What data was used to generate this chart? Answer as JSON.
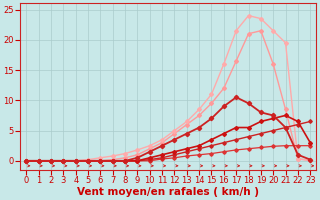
{
  "title": "",
  "xlabel": "Vent moyen/en rafales ( km/h )",
  "x_ticks": [
    0,
    1,
    2,
    3,
    4,
    5,
    6,
    7,
    8,
    9,
    10,
    11,
    12,
    13,
    14,
    15,
    16,
    17,
    18,
    19,
    20,
    21,
    22,
    23
  ],
  "y_ticks": [
    0,
    5,
    10,
    15,
    20,
    25
  ],
  "ylim": [
    -1.5,
    26
  ],
  "xlim": [
    -0.5,
    23.5
  ],
  "background_color": "#c8e8e8",
  "grid_color": "#aacccc",
  "series": [
    {
      "x": [
        0,
        1,
        2,
        3,
        4,
        5,
        6,
        7,
        8,
        9,
        10,
        11,
        12,
        13,
        14,
        15,
        16,
        17,
        18,
        19,
        20,
        21,
        22,
        23
      ],
      "y": [
        0,
        0,
        0,
        0,
        0,
        0,
        0,
        0,
        0,
        0,
        0,
        0.3,
        0.5,
        0.8,
        1.0,
        1.2,
        1.5,
        1.8,
        2.0,
        2.2,
        2.4,
        2.5,
        2.5,
        2.5
      ],
      "color": "#dd3333",
      "lw": 0.9,
      "marker": "D",
      "ms": 1.8,
      "zorder": 3
    },
    {
      "x": [
        0,
        1,
        2,
        3,
        4,
        5,
        6,
        7,
        8,
        9,
        10,
        11,
        12,
        13,
        14,
        15,
        16,
        17,
        18,
        19,
        20,
        21,
        22,
        23
      ],
      "y": [
        0,
        0,
        0,
        0,
        0,
        0,
        0,
        0,
        0,
        0,
        0.2,
        0.5,
        1.0,
        1.5,
        2.0,
        2.5,
        3.0,
        3.5,
        4.0,
        4.5,
        5.0,
        5.5,
        6.0,
        6.5
      ],
      "color": "#cc2222",
      "lw": 1.0,
      "marker": "D",
      "ms": 1.8,
      "zorder": 3
    },
    {
      "x": [
        0,
        1,
        2,
        3,
        4,
        5,
        6,
        7,
        8,
        9,
        10,
        11,
        12,
        13,
        14,
        15,
        16,
        17,
        18,
        19,
        20,
        21,
        22,
        23
      ],
      "y": [
        0,
        0,
        0,
        0,
        0,
        0,
        0,
        0,
        0,
        0,
        0.5,
        1.0,
        1.5,
        2.0,
        2.5,
        3.5,
        4.5,
        5.5,
        5.5,
        6.5,
        7.0,
        7.5,
        6.5,
        3.0
      ],
      "color": "#cc1111",
      "lw": 1.2,
      "marker": "D",
      "ms": 2.0,
      "zorder": 4
    },
    {
      "x": [
        0,
        1,
        2,
        3,
        4,
        5,
        6,
        7,
        8,
        9,
        10,
        11,
        12,
        13,
        14,
        15,
        16,
        17,
        18,
        19,
        20,
        21,
        22,
        23
      ],
      "y": [
        0,
        0,
        0,
        0,
        0,
        0,
        0,
        0,
        0,
        0.5,
        1.5,
        2.5,
        3.5,
        4.5,
        5.5,
        7.0,
        9.0,
        10.5,
        9.5,
        8.0,
        7.5,
        5.5,
        1.0,
        0.2
      ],
      "color": "#cc2222",
      "lw": 1.3,
      "marker": "D",
      "ms": 2.2,
      "zorder": 4
    },
    {
      "x": [
        0,
        1,
        2,
        3,
        4,
        5,
        6,
        7,
        8,
        9,
        10,
        11,
        12,
        13,
        14,
        15,
        16,
        17,
        18,
        19,
        20,
        21,
        22,
        23
      ],
      "y": [
        0,
        0,
        0,
        0,
        0,
        0,
        0,
        0.2,
        0.5,
        1.0,
        2.0,
        3.0,
        4.5,
        6.0,
        7.5,
        9.5,
        12.0,
        16.5,
        21.0,
        21.5,
        16.0,
        8.5,
        0.3,
        0.1
      ],
      "color": "#ff9999",
      "lw": 1.0,
      "marker": "D",
      "ms": 2.0,
      "zorder": 2
    },
    {
      "x": [
        0,
        1,
        2,
        3,
        4,
        5,
        6,
        7,
        8,
        9,
        10,
        11,
        12,
        13,
        14,
        15,
        16,
        17,
        18,
        19,
        20,
        21,
        22,
        23
      ],
      "y": [
        0,
        0,
        0,
        0,
        0,
        0.2,
        0.5,
        0.8,
        1.2,
        1.8,
        2.5,
        3.5,
        5.0,
        6.5,
        8.5,
        11.0,
        16.0,
        21.5,
        24.0,
        23.5,
        21.5,
        19.5,
        0.3,
        0.1
      ],
      "color": "#ffaaaa",
      "lw": 1.0,
      "marker": "D",
      "ms": 2.0,
      "zorder": 2
    }
  ],
  "xlabel_color": "#cc0000",
  "xlabel_fontsize": 7.5,
  "tick_color": "#cc0000",
  "tick_fontsize": 6.0
}
